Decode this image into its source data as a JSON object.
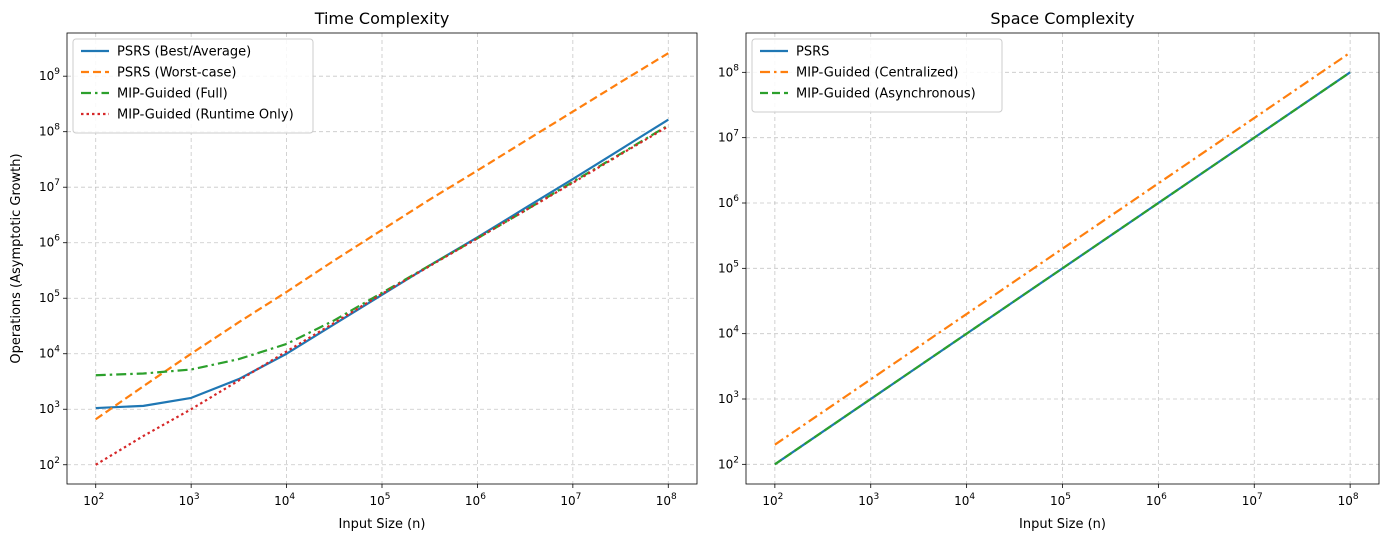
{
  "chart_data": [
    {
      "type": "line",
      "title": "Time Complexity",
      "xlabel": "Input Size (n)",
      "ylabel": "Operations (Asymptotic Growth)",
      "xscale": "log",
      "yscale": "log",
      "xlim": [
        50,
        200000000
      ],
      "ylim": [
        45,
        6000000000
      ],
      "x_ticks": [
        {
          "value": 100,
          "label": "10",
          "exp": "2"
        },
        {
          "value": 1000,
          "label": "10",
          "exp": "3"
        },
        {
          "value": 10000,
          "label": "10",
          "exp": "4"
        },
        {
          "value": 100000,
          "label": "10",
          "exp": "5"
        },
        {
          "value": 1000000,
          "label": "10",
          "exp": "6"
        },
        {
          "value": 10000000,
          "label": "10",
          "exp": "7"
        },
        {
          "value": 100000000,
          "label": "10",
          "exp": "8"
        }
      ],
      "y_ticks": [
        {
          "value": 100,
          "label": "10",
          "exp": "2"
        },
        {
          "value": 1000,
          "label": "10",
          "exp": "3"
        },
        {
          "value": 10000,
          "label": "10",
          "exp": "4"
        },
        {
          "value": 100000,
          "label": "10",
          "exp": "5"
        },
        {
          "value": 1000000,
          "label": "10",
          "exp": "6"
        },
        {
          "value": 10000000,
          "label": "10",
          "exp": "7"
        },
        {
          "value": 100000000,
          "label": "10",
          "exp": "8"
        },
        {
          "value": 1000000000,
          "label": "10",
          "exp": "9"
        }
      ],
      "grid": true,
      "legend": "upper-left",
      "series": [
        {
          "name": "PSRS (Best/Average)",
          "color": "#1f77b4",
          "style": "solid",
          "x": [
            100,
            316,
            1000,
            3162,
            10000,
            31623,
            100000,
            316228,
            1000000,
            3162278,
            10000000,
            31622777,
            100000000
          ],
          "y": [
            1050,
            1150,
            1600,
            3500,
            10000,
            34000,
            115000,
            390000,
            1250000,
            4200000,
            14000000,
            48000000,
            165000000
          ]
        },
        {
          "name": "PSRS (Worst-case)",
          "color": "#ff7f0e",
          "style": "dashed",
          "x": [
            100,
            316,
            1000,
            3162,
            10000,
            31623,
            100000,
            316228,
            1000000,
            3162278,
            10000000,
            31622777,
            100000000
          ],
          "y": [
            660,
            2600,
            10000,
            37000,
            130000,
            480000,
            1700000,
            6000000,
            20000000,
            68000000,
            230000000,
            780000000,
            2600000000
          ]
        },
        {
          "name": "MIP-Guided (Full)",
          "color": "#2ca02c",
          "style": "dashdot",
          "x": [
            100,
            316,
            1000,
            3162,
            10000,
            31623,
            100000,
            316228,
            1000000,
            3162278,
            10000000,
            31622777,
            100000000
          ],
          "y": [
            4100,
            4400,
            5200,
            8000,
            15000,
            40000,
            125000,
            390000,
            1200000,
            3800000,
            12500000,
            40000000,
            130000000
          ]
        },
        {
          "name": "MIP-Guided (Runtime Only)",
          "color": "#d62728",
          "style": "dotted",
          "x": [
            100,
            316,
            1000,
            3162,
            10000,
            31623,
            100000,
            316228,
            1000000,
            3162278,
            10000000,
            31622777,
            100000000
          ],
          "y": [
            100,
            330,
            1000,
            3300,
            11000,
            36000,
            120000,
            380000,
            1200000,
            3800000,
            12000000,
            39000000,
            125000000
          ]
        }
      ]
    },
    {
      "type": "line",
      "title": "Space Complexity",
      "xlabel": "Input Size (n)",
      "ylabel": "",
      "xscale": "log",
      "yscale": "log",
      "xlim": [
        50,
        200000000
      ],
      "ylim": [
        50,
        400000000
      ],
      "x_ticks": [
        {
          "value": 100,
          "label": "10",
          "exp": "2"
        },
        {
          "value": 1000,
          "label": "10",
          "exp": "3"
        },
        {
          "value": 10000,
          "label": "10",
          "exp": "4"
        },
        {
          "value": 100000,
          "label": "10",
          "exp": "5"
        },
        {
          "value": 1000000,
          "label": "10",
          "exp": "6"
        },
        {
          "value": 10000000,
          "label": "10",
          "exp": "7"
        },
        {
          "value": 100000000,
          "label": "10",
          "exp": "8"
        }
      ],
      "y_ticks": [
        {
          "value": 100,
          "label": "10",
          "exp": "2"
        },
        {
          "value": 1000,
          "label": "10",
          "exp": "3"
        },
        {
          "value": 10000,
          "label": "10",
          "exp": "4"
        },
        {
          "value": 100000,
          "label": "10",
          "exp": "5"
        },
        {
          "value": 1000000,
          "label": "10",
          "exp": "6"
        },
        {
          "value": 10000000,
          "label": "10",
          "exp": "7"
        },
        {
          "value": 100000000,
          "label": "10",
          "exp": "8"
        }
      ],
      "grid": true,
      "legend": "upper-left",
      "series": [
        {
          "name": "PSRS",
          "color": "#1f77b4",
          "style": "solid",
          "x": [
            100,
            100000000
          ],
          "y": [
            100,
            100000000
          ]
        },
        {
          "name": "MIP-Guided (Centralized)",
          "color": "#ff7f0e",
          "style": "dashdot",
          "x": [
            100,
            100000000
          ],
          "y": [
            200,
            200000000
          ]
        },
        {
          "name": "MIP-Guided (Asynchronous)",
          "color": "#2ca02c",
          "style": "dashed",
          "x": [
            100,
            100000000
          ],
          "y": [
            100,
            100000000
          ]
        }
      ]
    }
  ]
}
